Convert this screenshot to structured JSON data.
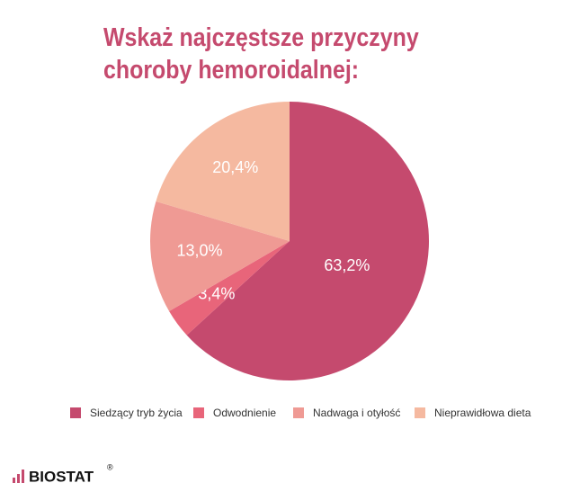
{
  "chart_data": {
    "type": "pie",
    "title": "Wskaż najczęstsze przyczyny choroby hemoroidalnej:",
    "categories": [
      "Siedzący tryb życia",
      "Odwodnienie",
      "Nadwaga i otyłość",
      "Nieprawidłowa dieta"
    ],
    "values": [
      63.2,
      3.4,
      13.0,
      20.4
    ],
    "value_labels": [
      "63,2%",
      "3,4%",
      "13,0%",
      "20,4%"
    ],
    "colors": [
      "#c54a6e",
      "#e8657a",
      "#ef9a94",
      "#f5b9a0"
    ],
    "legend": "bottom"
  },
  "logo": {
    "name": "BIOSTAT",
    "mark": "®"
  }
}
